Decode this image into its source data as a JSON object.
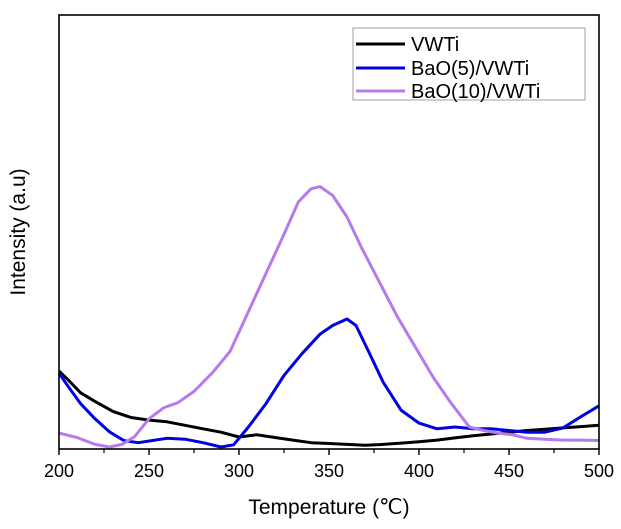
{
  "chart_data": {
    "type": "line",
    "title": "",
    "xlabel": "Temperature (℃)",
    "ylabel": "Intensity (a.u)",
    "xlim": [
      200,
      500
    ],
    "ylim": [
      0,
      100
    ],
    "x_ticks": [
      "200",
      "250",
      "300",
      "350",
      "400",
      "450",
      "500"
    ],
    "x_tick_values": [
      200,
      250,
      300,
      350,
      400,
      450,
      500
    ],
    "y_ticks_shown": false,
    "grid": false,
    "legend_position": "top-right",
    "series": [
      {
        "name": "VWTi",
        "color": "#000000",
        "x": [
          200,
          205,
          212,
          220,
          230,
          240,
          250,
          260,
          270,
          280,
          290,
          300,
          310,
          320,
          330,
          340,
          350,
          360,
          370,
          380,
          390,
          400,
          410,
          420,
          430,
          440,
          450,
          460,
          470,
          480,
          490,
          500
        ],
        "y": [
          17.5,
          15.5,
          12.5,
          10.5,
          8.2,
          6.8,
          6.2,
          5.8,
          5.0,
          4.2,
          3.4,
          2.3,
          2.8,
          2.2,
          1.6,
          1.0,
          0.8,
          0.6,
          0.4,
          0.6,
          0.9,
          1.2,
          1.6,
          2.1,
          2.6,
          3.0,
          3.4,
          3.8,
          4.1,
          4.4,
          4.7,
          5.0
        ]
      },
      {
        "name": "BaO(5)/VWTi",
        "color": "#0000e0",
        "x": [
          200,
          205,
          212,
          220,
          228,
          236,
          244,
          252,
          260,
          270,
          280,
          290,
          297,
          305,
          315,
          325,
          335,
          345,
          352,
          360,
          365,
          372,
          380,
          390,
          400,
          410,
          420,
          430,
          440,
          450,
          460,
          470,
          480,
          490,
          500
        ],
        "y": [
          17.0,
          14.0,
          10.0,
          6.5,
          3.5,
          1.5,
          1.0,
          1.5,
          2.0,
          1.8,
          1.0,
          0.0,
          0.5,
          4.5,
          10.0,
          16.5,
          21.5,
          26.0,
          28.0,
          29.5,
          28.0,
          22.0,
          15.0,
          8.5,
          5.5,
          4.2,
          4.6,
          4.2,
          4.2,
          3.8,
          3.4,
          3.4,
          4.4,
          7.0,
          9.5
        ]
      },
      {
        "name": "BaO(10)/VWTi",
        "color": "#b57aed",
        "x": [
          200,
          210,
          220,
          228,
          235,
          242,
          250,
          258,
          266,
          275,
          285,
          295,
          305,
          315,
          325,
          333,
          340,
          345,
          352,
          360,
          368,
          378,
          388,
          398,
          408,
          418,
          428,
          436,
          444,
          452,
          460,
          470,
          480,
          490,
          500
        ],
        "y": [
          3.2,
          2.2,
          0.6,
          0.0,
          0.6,
          2.4,
          6.5,
          9.0,
          10.2,
          12.8,
          17.0,
          22.0,
          31.0,
          40.0,
          49.0,
          56.5,
          59.5,
          60.0,
          58.0,
          53.0,
          46.0,
          38.0,
          30.0,
          23.0,
          16.0,
          10.0,
          4.6,
          3.8,
          3.2,
          2.8,
          2.0,
          1.8,
          1.6,
          1.6,
          1.5
        ]
      }
    ]
  }
}
